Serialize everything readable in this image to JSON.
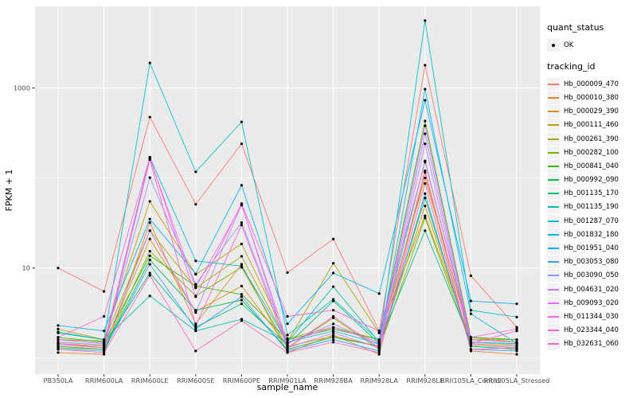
{
  "chart_data": {
    "type": "line",
    "title": "",
    "xlabel": "sample_name",
    "ylabel": "FPKM + 1",
    "y_scale": "log10",
    "y_major_ticks": [
      10,
      1000
    ],
    "y_minor_gridlines": [
      1,
      100
    ],
    "ylim": [
      1,
      6000
    ],
    "grid": true,
    "legend_position": "right",
    "x_categories": [
      "PB350LA",
      "RRIM600LA",
      "RRIM600LE",
      "RRIM600SE",
      "RRIM600PE",
      "RRIM901LA",
      "RRIM928BA",
      "RRIM928LA",
      "RRIM928LE",
      "RRII105LA_Control",
      "RRII105LA_Stressed"
    ],
    "series": [
      {
        "name": "Hb_000009_470",
        "color": "#F8766D",
        "values": [
          10,
          5.5,
          475,
          51,
          240,
          8.9,
          21,
          2.0,
          1790,
          8.2,
          2.2
        ]
      },
      {
        "name": "Hb_000010_380",
        "color": "#EA8331",
        "values": [
          1.15,
          1.1,
          32,
          2.4,
          11,
          1.15,
          1.8,
          1.1,
          115,
          1.2,
          1.1
        ]
      },
      {
        "name": "Hb_000029_390",
        "color": "#D89000",
        "values": [
          1.45,
          1.35,
          21,
          3.3,
          6.3,
          1.35,
          1.75,
          1.35,
          49,
          1.45,
          1.35
        ]
      },
      {
        "name": "Hb_000111_460",
        "color": "#C09B00",
        "values": [
          2.1,
          1.6,
          55,
          8.5,
          18.5,
          1.65,
          2.2,
          1.6,
          100,
          1.7,
          1.5
        ]
      },
      {
        "name": "Hb_000261_390",
        "color": "#A3A500",
        "values": [
          1.6,
          1.55,
          26,
          6.0,
          13.5,
          1.5,
          11.3,
          1.9,
          38,
          1.6,
          1.6
        ]
      },
      {
        "name": "Hb_000282_100",
        "color": "#7CAE00",
        "values": [
          1.35,
          1.25,
          15.4,
          4.9,
          10.2,
          1.3,
          2.8,
          1.25,
          36,
          1.4,
          1.3
        ]
      },
      {
        "name": "Hb_000841_040",
        "color": "#39B600",
        "values": [
          1.7,
          1.5,
          13.7,
          6.3,
          5.1,
          1.6,
          2.1,
          1.6,
          430,
          1.7,
          1.6
        ]
      },
      {
        "name": "Hb_000992_090",
        "color": "#00BB4E",
        "values": [
          1.3,
          1.25,
          12.3,
          3.4,
          4.4,
          1.25,
          1.7,
          1.35,
          60,
          1.35,
          1.25
        ]
      },
      {
        "name": "Hb_001135_170",
        "color": "#00BF7D",
        "values": [
          1.5,
          1.4,
          8.8,
          2.2,
          4.0,
          1.4,
          4.3,
          1.45,
          26,
          1.5,
          1.45
        ]
      },
      {
        "name": "Hb_001135_190",
        "color": "#00C1A3",
        "values": [
          1.95,
          1.6,
          4.9,
          2.0,
          2.7,
          1.5,
          6.2,
          1.5,
          155,
          1.6,
          1.5
        ]
      },
      {
        "name": "Hb_001287_070",
        "color": "#00BFC4",
        "values": [
          1.9,
          1.6,
          1900,
          117,
          420,
          1.8,
          4.5,
          1.55,
          5600,
          3.4,
          2.85
        ]
      },
      {
        "name": "Hb_001832_180",
        "color": "#00BAE0",
        "values": [
          1.6,
          1.45,
          170,
          12,
          10.5,
          1.5,
          2.0,
          1.45,
          970,
          3.1,
          1.45
        ]
      },
      {
        "name": "Hb_001951_040",
        "color": "#00B0F6",
        "values": [
          2.3,
          2.0,
          35,
          8.6,
          83,
          2.4,
          8.8,
          5.2,
          730,
          4.3,
          4.0
        ]
      },
      {
        "name": "Hb_003053_080",
        "color": "#35A2FF",
        "values": [
          1.25,
          1.2,
          11.0,
          2.1,
          4.8,
          1.2,
          1.6,
          1.2,
          67,
          1.25,
          1.2
        ]
      },
      {
        "name": "Hb_003090_050",
        "color": "#9590FF",
        "values": [
          1.5,
          1.4,
          101,
          6.6,
          32,
          1.45,
          2.4,
          1.4,
          310,
          1.5,
          1.4
        ]
      },
      {
        "name": "Hb_004631_020",
        "color": "#C77CFF",
        "values": [
          1.4,
          1.3,
          26,
          3.2,
          51,
          1.3,
          1.9,
          1.3,
          240,
          1.4,
          1.3
        ]
      },
      {
        "name": "Hb_009093_020",
        "color": "#E76BF3",
        "values": [
          1.6,
          1.45,
          165,
          6.1,
          50,
          1.5,
          2.2,
          1.5,
          380,
          1.6,
          1.5
        ]
      },
      {
        "name": "Hb_011344_030",
        "color": "#FA62DB",
        "values": [
          1.7,
          2.9,
          170,
          4.8,
          52,
          2.9,
          3.4,
          2.0,
          150,
          1.7,
          2.1
        ]
      },
      {
        "name": "Hb_023344_040",
        "color": "#FF61CC",
        "values": [
          1.45,
          1.3,
          160,
          2.3,
          30,
          1.3,
          2.9,
          1.3,
          120,
          1.45,
          2.0
        ]
      },
      {
        "name": "Hb_032631_060",
        "color": "#FF67BB",
        "values": [
          1.25,
          1.15,
          8.3,
          1.2,
          2.6,
          1.15,
          1.5,
          1.15,
          87,
          1.25,
          1.3
        ]
      }
    ]
  },
  "legend": {
    "quant_status": {
      "title": "quant_status",
      "items": [
        {
          "label": "OK",
          "marker": "black-point"
        }
      ]
    },
    "tracking_id": {
      "title": "tracking_id"
    }
  },
  "axis": {
    "y_tick_labels": [
      "1000",
      "10"
    ],
    "x_tick_label_color": "#4D4D4D"
  },
  "colors": {
    "figure_bg": "#FFFFFF",
    "panel_bg": "#EBEBEB",
    "gridline": "#FFFFFF",
    "axis_text": "#4D4D4D",
    "axis_title": "#000000",
    "point": "#000000",
    "legend_key_bg": "#F2F2F2",
    "tick_mark": "#333333"
  }
}
